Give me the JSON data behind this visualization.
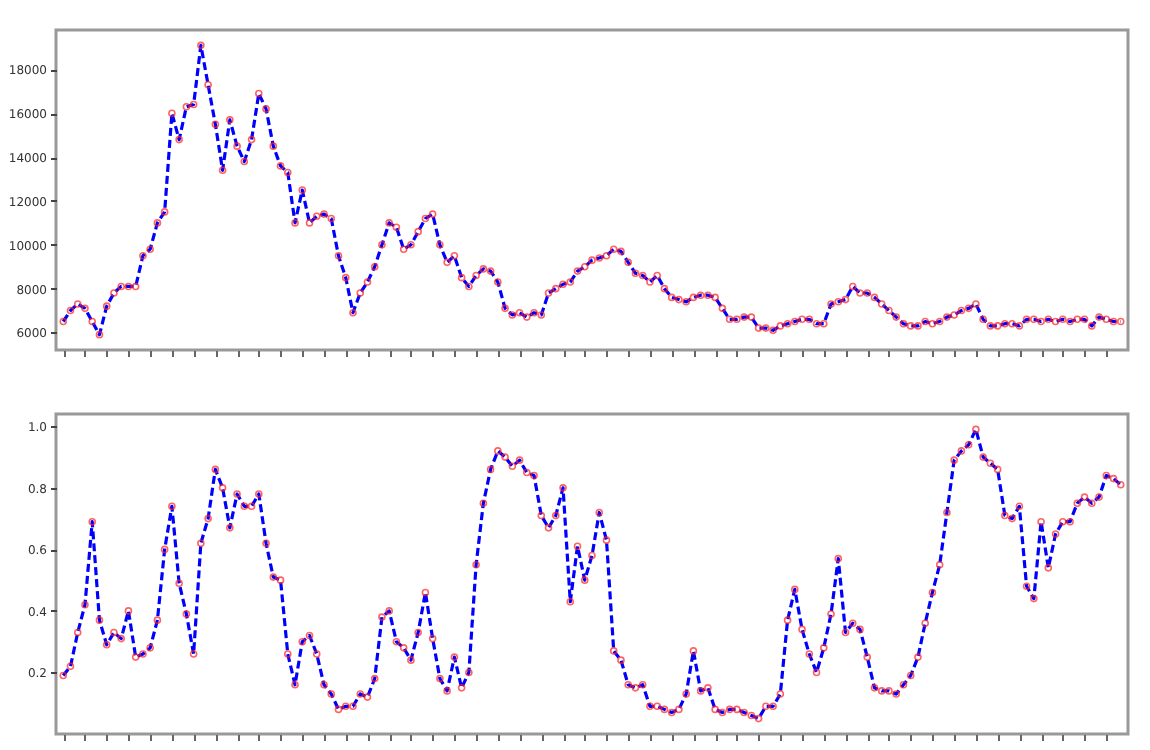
{
  "chart_data": [
    {
      "type": "line",
      "categories": [
        null,
        null,
        null,
        null,
        null,
        null,
        null,
        null,
        null,
        null,
        null,
        null,
        null,
        null,
        null,
        null,
        null,
        null,
        null,
        null,
        null,
        null,
        null,
        null,
        null,
        null,
        null,
        null,
        null,
        null,
        null,
        null,
        null,
        null,
        null,
        null,
        null,
        null,
        null,
        null,
        null,
        null,
        null,
        null,
        null,
        null,
        null,
        null,
        null,
        null,
        null,
        null,
        null,
        null,
        null,
        null,
        null,
        null,
        null,
        null,
        null,
        null,
        null,
        null,
        null,
        null,
        null,
        null,
        null,
        null,
        null,
        null,
        null,
        null,
        null,
        null,
        null,
        null,
        null,
        null,
        null,
        null,
        null,
        null,
        null,
        null,
        null,
        null,
        null,
        null,
        null,
        null,
        null,
        null,
        null,
        null,
        null,
        null,
        null,
        null,
        null,
        null,
        null,
        null,
        null,
        null,
        null,
        null,
        null,
        null,
        null,
        null,
        null,
        null,
        null,
        null,
        null,
        null,
        null,
        null,
        null,
        null,
        null,
        null,
        null,
        null,
        null,
        null,
        null,
        null,
        null,
        null,
        null,
        null,
        null,
        null,
        null,
        null,
        null,
        null,
        null,
        null,
        null,
        null,
        null,
        null,
        null
      ],
      "series": [
        {
          "color": "#0000ff",
          "values": [
            6500,
            7000,
            7300,
            7100,
            6500,
            5900,
            7200,
            7800,
            8100,
            8100,
            8100,
            9500,
            9800,
            11000,
            11500,
            16000,
            14800,
            16300,
            16400,
            19100,
            17300,
            15500,
            13400,
            15700,
            14500,
            13800,
            14800,
            16900,
            16200,
            14500,
            13600,
            13300,
            11000,
            12500,
            11000,
            11300,
            11400,
            11200,
            9500,
            8500,
            6900,
            7800,
            8300,
            9000,
            10000,
            11000,
            10800,
            9800,
            10000,
            10600,
            11200,
            11400,
            10000,
            9200,
            9500,
            8500,
            8100,
            8600,
            8900,
            8800,
            8300,
            7100,
            6800,
            6900,
            6700,
            6900,
            6800,
            7800,
            8000,
            8200,
            8300,
            8800,
            9000,
            9300,
            9400,
            9500,
            9800,
            9700,
            9200,
            8700,
            8600,
            8300,
            8600,
            8000,
            7600,
            7500,
            7400,
            7600,
            7700,
            7700,
            7600,
            7100,
            6600,
            6600,
            6700,
            6700,
            6200,
            6200,
            6100,
            6300,
            6400,
            6500,
            6600,
            6600,
            6400,
            6400,
            7300,
            7400,
            7500,
            8100,
            7800,
            7800,
            7600,
            7300,
            7000,
            6700,
            6400,
            6300,
            6300,
            6500,
            6400,
            6500,
            6700,
            6800,
            7000,
            7100,
            7300,
            6600,
            6300,
            6300,
            6400,
            6400,
            6300,
            6600,
            6600,
            6500,
            6600,
            6500,
            6600,
            6500,
            6600,
            6600,
            6300,
            6700,
            6600,
            6500,
            6500
          ]
        }
      ],
      "ylim": [
        5200,
        19800
      ],
      "yticks": [
        6000,
        8000,
        10000,
        12000,
        14000,
        16000,
        18000
      ],
      "tick_labels": "y",
      "marker": "circle",
      "line_style": "dashed",
      "grid": false
    },
    {
      "type": "line",
      "categories": [
        null,
        null,
        null,
        null,
        null,
        null,
        null,
        null,
        null,
        null,
        null,
        null,
        null,
        null,
        null,
        null,
        null,
        null,
        null,
        null,
        null,
        null,
        null,
        null,
        null,
        null,
        null,
        null,
        null,
        null,
        null,
        null,
        null,
        null,
        null,
        null,
        null,
        null,
        null,
        null,
        null,
        null,
        null,
        null,
        null,
        null,
        null,
        null,
        null,
        null,
        null,
        null,
        null,
        null,
        null,
        null,
        null,
        null,
        null,
        null,
        null,
        null,
        null,
        null,
        null,
        null,
        null,
        null,
        null,
        null,
        null,
        null,
        null,
        null,
        null,
        null,
        null,
        null,
        null,
        null,
        null,
        null,
        null,
        null,
        null,
        null,
        null,
        null,
        null,
        null,
        null,
        null,
        null,
        null,
        null,
        null,
        null,
        null,
        null,
        null,
        null,
        null,
        null,
        null,
        null,
        null,
        null,
        null,
        null,
        null,
        null,
        null,
        null,
        null,
        null,
        null,
        null,
        null,
        null,
        null,
        null,
        null,
        null,
        null,
        null,
        null,
        null,
        null,
        null,
        null,
        null,
        null,
        null,
        null,
        null,
        null,
        null,
        null,
        null,
        null,
        null,
        null,
        null,
        null,
        null,
        null,
        null
      ],
      "series": [
        {
          "color": "#0000ff",
          "values": [
            0.19,
            0.22,
            0.33,
            0.42,
            0.69,
            0.37,
            0.29,
            0.33,
            0.31,
            0.4,
            0.25,
            0.26,
            0.28,
            0.37,
            0.6,
            0.74,
            0.49,
            0.39,
            0.26,
            0.62,
            0.7,
            0.86,
            0.8,
            0.67,
            0.78,
            0.74,
            0.74,
            0.78,
            0.62,
            0.51,
            0.5,
            0.26,
            0.16,
            0.3,
            0.32,
            0.26,
            0.16,
            0.13,
            0.08,
            0.09,
            0.09,
            0.13,
            0.12,
            0.18,
            0.38,
            0.4,
            0.3,
            0.28,
            0.24,
            0.33,
            0.46,
            0.31,
            0.18,
            0.14,
            0.25,
            0.15,
            0.2,
            0.55,
            0.75,
            0.86,
            0.92,
            0.9,
            0.87,
            0.89,
            0.85,
            0.84,
            0.71,
            0.67,
            0.71,
            0.8,
            0.43,
            0.61,
            0.5,
            0.58,
            0.72,
            0.63,
            0.27,
            0.24,
            0.16,
            0.15,
            0.16,
            0.09,
            0.09,
            0.08,
            0.07,
            0.08,
            0.13,
            0.27,
            0.14,
            0.15,
            0.08,
            0.07,
            0.08,
            0.08,
            0.07,
            0.06,
            0.05,
            0.09,
            0.09,
            0.13,
            0.37,
            0.47,
            0.34,
            0.26,
            0.2,
            0.28,
            0.39,
            0.57,
            0.33,
            0.36,
            0.34,
            0.25,
            0.15,
            0.14,
            0.14,
            0.13,
            0.16,
            0.19,
            0.25,
            0.36,
            0.46,
            0.55,
            0.72,
            0.89,
            0.92,
            0.94,
            0.99,
            0.9,
            0.88,
            0.86,
            0.71,
            0.7,
            0.74,
            0.48,
            0.44,
            0.69,
            0.54,
            0.65,
            0.69,
            0.69,
            0.75,
            0.77,
            0.75,
            0.77,
            0.84,
            0.83,
            0.81
          ]
        }
      ],
      "ylim": [
        0,
        1.04
      ],
      "yticks": [
        0.2,
        0.4,
        0.6,
        0.8,
        {
          "value": 1,
          "label": "1.0"
        }
      ],
      "tick_labels": "y",
      "marker": "circle",
      "line_style": "dashed",
      "grid": false
    }
  ]
}
